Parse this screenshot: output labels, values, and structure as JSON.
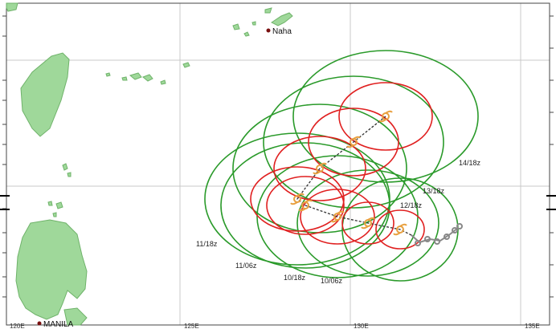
{
  "map": {
    "colors": {
      "land": "#9fd89a",
      "land_edge": "#6fb36a",
      "grid": "#c8c8c8",
      "outer_circle": "#2a9a2a",
      "inner_circle": "#e02020",
      "track": "#333333",
      "marker": "#e8a040",
      "history": "#888888"
    },
    "cities": [
      {
        "name": "Naha"
      },
      {
        "name": "MANILA"
      }
    ],
    "longitude_labels": [
      "120E",
      "125E",
      "130E",
      "135E"
    ],
    "forecast_labels": [
      "14/18z",
      "13/18z",
      "12/18z",
      "11/18z",
      "11/06z",
      "10/18z",
      "10/06z"
    ],
    "track_icon": "tropical-cyclone-icon"
  }
}
